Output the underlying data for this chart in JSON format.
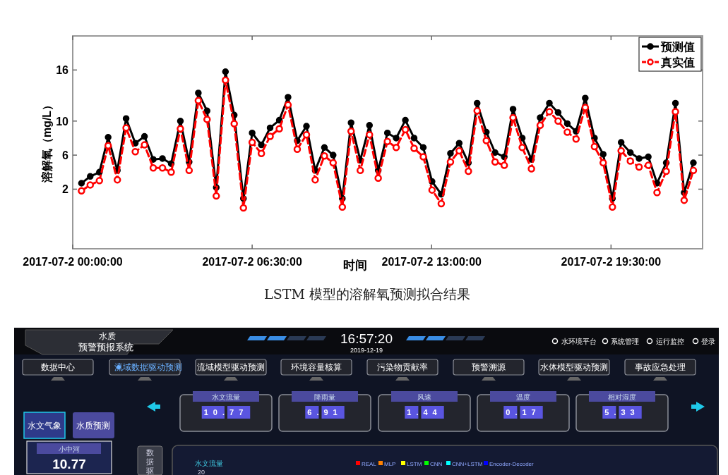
{
  "chart_data": [
    {
      "type": "line",
      "xlabel": "时间",
      "ylabel": "溶解氧（mg/L）",
      "xlim": [
        "2017-07-02T00:00",
        "2017-07-02T22:49"
      ],
      "xticks": [
        {
          "value": "2017-07-02T00:00",
          "label": "2017-07-2 00:00:00"
        },
        {
          "value": "2017-07-02T06:30",
          "label": "2017-07-2 06:30:00"
        },
        {
          "value": "2017-07-02T13:00",
          "label": "2017-07-2 13:00:00"
        },
        {
          "value": "2017-07-02T19:30",
          "label": "2017-07-2 19:30:00"
        }
      ],
      "ylim": [
        -5,
        20
      ],
      "yticks": [
        2,
        6,
        10,
        16
      ],
      "legend": "top right",
      "x": [
        "2017-07-02T00:19",
        "2017-07-02T00:38",
        "2017-07-02T00:58",
        "2017-07-02T01:17",
        "2017-07-02T01:37",
        "2017-07-02T01:56",
        "2017-07-02T02:16",
        "2017-07-02T02:36",
        "2017-07-02T02:55",
        "2017-07-02T03:15",
        "2017-07-02T03:34",
        "2017-07-02T03:54",
        "2017-07-02T04:13",
        "2017-07-02T04:33",
        "2017-07-02T04:52",
        "2017-07-02T05:12",
        "2017-07-02T05:32",
        "2017-07-02T05:51",
        "2017-07-02T06:11",
        "2017-07-02T06:30",
        "2017-07-02T06:50",
        "2017-07-02T07:09",
        "2017-07-02T07:29",
        "2017-07-02T07:48",
        "2017-07-02T08:08",
        "2017-07-02T08:28",
        "2017-07-02T08:47",
        "2017-07-02T09:07",
        "2017-07-02T09:26",
        "2017-07-02T09:46",
        "2017-07-02T10:05",
        "2017-07-02T10:25",
        "2017-07-02T10:45",
        "2017-07-02T11:04",
        "2017-07-02T11:24",
        "2017-07-02T11:43",
        "2017-07-02T12:03",
        "2017-07-02T12:22",
        "2017-07-02T12:42",
        "2017-07-02T13:01",
        "2017-07-02T13:21",
        "2017-07-02T13:41",
        "2017-07-02T14:00",
        "2017-07-02T14:20",
        "2017-07-02T14:39",
        "2017-07-02T14:59",
        "2017-07-02T15:18",
        "2017-07-02T15:38",
        "2017-07-02T15:57",
        "2017-07-02T16:17",
        "2017-07-02T16:37",
        "2017-07-02T16:56",
        "2017-07-02T17:16",
        "2017-07-02T17:35",
        "2017-07-02T17:55",
        "2017-07-02T18:14",
        "2017-07-02T18:34",
        "2017-07-02T18:54",
        "2017-07-02T19:13",
        "2017-07-02T19:33",
        "2017-07-02T19:52",
        "2017-07-02T20:12",
        "2017-07-02T20:31",
        "2017-07-02T20:51",
        "2017-07-02T21:10",
        "2017-07-02T21:30",
        "2017-07-02T21:50",
        "2017-07-02T22:09",
        "2017-07-02T22:29"
      ],
      "series": [
        {
          "name": "预测值",
          "color": "#000000",
          "marker": "circle",
          "line_style": "solid",
          "values": [
            2.7,
            3.5,
            4.0,
            8.1,
            4.2,
            10.3,
            7.4,
            8.2,
            5.5,
            5.6,
            5.0,
            10.0,
            5.2,
            13.3,
            11.2,
            2.2,
            15.8,
            10.7,
            0.9,
            8.6,
            7.2,
            9.2,
            10.1,
            12.8,
            7.7,
            9.4,
            4.2,
            6.9,
            6.0,
            0.9,
            9.8,
            5.4,
            9.5,
            4.2,
            8.6,
            8.0,
            10.1,
            8.0,
            6.9,
            2.9,
            1.4,
            6.2,
            7.4,
            5.1,
            12.1,
            8.7,
            6.3,
            5.8,
            11.4,
            8.0,
            5.5,
            10.4,
            12.1,
            11.0,
            9.7,
            8.8,
            12.7,
            8.0,
            6.1,
            0.9,
            7.5,
            6.3,
            5.6,
            5.8,
            2.7,
            5.1,
            12.1,
            1.6,
            5.1
          ]
        },
        {
          "name": "真实值",
          "color": "#ff0000",
          "marker": "circle",
          "line_style": "dashed",
          "values": [
            1.8,
            2.5,
            3.0,
            7.1,
            3.1,
            9.2,
            6.4,
            7.2,
            4.5,
            4.5,
            4.0,
            9.1,
            4.2,
            12.4,
            10.2,
            1.2,
            14.8,
            9.7,
            -0.2,
            7.5,
            6.2,
            8.2,
            9.1,
            11.9,
            6.7,
            8.4,
            3.1,
            5.9,
            5.1,
            -0.1,
            8.8,
            4.2,
            8.4,
            3.3,
            7.6,
            6.9,
            9.0,
            6.8,
            5.8,
            1.9,
            0.3,
            5.2,
            6.5,
            4.1,
            11.2,
            7.7,
            5.2,
            4.8,
            10.4,
            6.9,
            4.4,
            9.5,
            11.1,
            10.0,
            8.7,
            7.9,
            11.6,
            7.0,
            5.1,
            -0.1,
            6.5,
            5.3,
            4.6,
            4.8,
            1.6,
            4.1,
            11.1,
            0.7,
            4.2
          ]
        }
      ],
      "annotations": [
        "LSTM 模型的溶解氧预测拟合结果"
      ]
    },
    {
      "type": "other",
      "annotations": [
        "水质",
        "预警预报系统",
        "16:57:20",
        "2019-12-19",
        "水环境平台",
        "系统管理",
        "运行监控",
        "登录",
        "数据中心",
        "流域数据驱动预测",
        "流域模型驱动预测",
        "环境容量核算",
        "污染物贡献率",
        "预警溯源",
        "水体模型驱动预测",
        "事故应急处理",
        "水文流量",
        "10.77",
        "降雨量",
        "6.91",
        "风速",
        "1.44",
        "温度",
        "0.17",
        "相对湿度",
        "5.33",
        "水文气象",
        "水质预测",
        "小中河",
        "10.77",
        "数据驱",
        "水文流量",
        "20",
        "REAL",
        "MLP",
        "LSTM",
        "CNN",
        "CNN+LSTM",
        "Encoder-Decoder"
      ]
    }
  ]
}
